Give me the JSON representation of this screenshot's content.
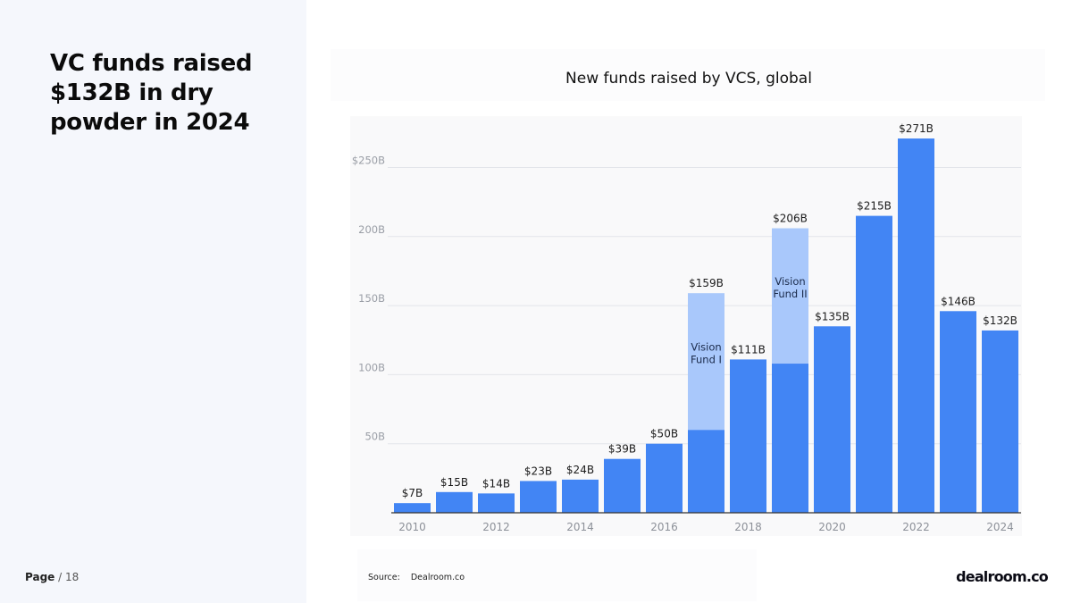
{
  "headline": "VC funds raised $132B in dry powder in 2024",
  "footer": {
    "page_label": "Page",
    "page_sep": " / 18",
    "source_label": "Source:",
    "source_value": "Dealroom.co",
    "logo": "dealroom.co"
  },
  "colors": {
    "primary_bar": "#4285f4",
    "light_bar": "#a9c8fb",
    "grid": "#e3e5ea",
    "axis_text": "#9a9ea6"
  },
  "chart_data": {
    "type": "bar",
    "title": "New funds raised by VCS, global",
    "xlabel": "",
    "ylabel": "",
    "ylim": [
      0,
      290
    ],
    "grid": true,
    "y_ticks": [
      {
        "value": 50,
        "label": "50B"
      },
      {
        "value": 100,
        "label": "100B"
      },
      {
        "value": 150,
        "label": "150B"
      },
      {
        "value": 200,
        "label": "200B"
      },
      {
        "value": 250,
        "label": "$250B"
      }
    ],
    "categories": [
      "2010",
      "2011",
      "2012",
      "2013",
      "2014",
      "2015",
      "2016",
      "2017",
      "2018",
      "2019",
      "2020",
      "2021",
      "2022",
      "2023",
      "2024"
    ],
    "x_tick_labels": [
      "2010",
      "",
      "2012",
      "",
      "2014",
      "",
      "2016",
      "",
      "2018",
      "",
      "2020",
      "",
      "2022",
      "",
      "2024"
    ],
    "values": [
      7,
      15,
      14,
      23,
      24,
      39,
      50,
      159,
      111,
      206,
      135,
      215,
      271,
      146,
      132
    ],
    "value_labels": [
      "$7B",
      "$15B",
      "$14B",
      "$23B",
      "$24B",
      "$39B",
      "$50B",
      "$159B",
      "$111B",
      "$206B",
      "$135B",
      "$215B",
      "$271B",
      "$146B",
      "$132B"
    ],
    "highlighted_segments": [
      {
        "category": "2017",
        "base": 60,
        "top": 159,
        "label_line1": "Vision",
        "label_line2": "Fund I"
      },
      {
        "category": "2019",
        "base": 108,
        "top": 206,
        "label_line1": "Vision",
        "label_line2": "Fund II"
      }
    ]
  }
}
